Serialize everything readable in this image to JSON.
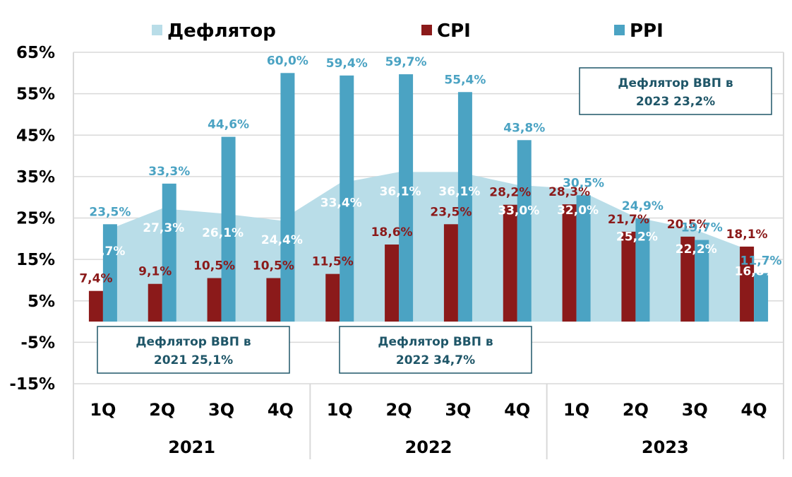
{
  "colors": {
    "deflator": "#b9dde8",
    "cpi": "#8b1a1a",
    "ppi": "#4ba3c3",
    "box_border": "#1f5668",
    "grid": "#d9d9d9"
  },
  "chart_data": {
    "type": "bar",
    "categories": [
      "1Q",
      "2Q",
      "3Q",
      "4Q",
      "1Q",
      "2Q",
      "3Q",
      "4Q",
      "1Q",
      "2Q",
      "3Q",
      "4Q"
    ],
    "years": [
      "2021",
      "2022",
      "2023"
    ],
    "ylim": [
      -15,
      65
    ],
    "yticks": [
      "65%",
      "55%",
      "45%",
      "35%",
      "25%",
      "15%",
      "5%",
      "-5%",
      "-15%"
    ],
    "legend": [
      {
        "key": "deflator",
        "name": "Дефлятор"
      },
      {
        "key": "cpi",
        "name": "CPI"
      },
      {
        "key": "ppi",
        "name": "PPI"
      }
    ],
    "series": [
      {
        "key": "deflator",
        "type": "area",
        "values": [
          21.7,
          27.3,
          26.1,
          24.4,
          33.4,
          36.1,
          36.1,
          33.0,
          32.0,
          25.2,
          22.2,
          16.8
        ],
        "labels": [
          "21,7%",
          "27,3%",
          "26,1%",
          "24,4%",
          "33,4%",
          "36,1%",
          "36,1%",
          "33,0%",
          "32,0%",
          "25,2%",
          "22,2%",
          "16,8%"
        ]
      },
      {
        "key": "cpi",
        "type": "bar",
        "values": [
          7.4,
          9.1,
          10.5,
          10.5,
          11.5,
          18.6,
          23.5,
          28.2,
          28.3,
          21.7,
          20.5,
          18.1
        ],
        "labels": [
          "7,4%",
          "9,1%",
          "10,5%",
          "10,5%",
          "11,5%",
          "18,6%",
          "23,5%",
          "28,2%",
          "28,3%",
          "21,7%",
          "20,5%",
          "18,1%"
        ]
      },
      {
        "key": "ppi",
        "type": "bar",
        "values": [
          23.5,
          33.3,
          44.6,
          60.0,
          59.4,
          59.7,
          55.4,
          43.8,
          30.5,
          24.9,
          19.7,
          11.7
        ],
        "labels": [
          "23,5%",
          "33,3%",
          "44,6%",
          "60,0%",
          "59,4%",
          "59,7%",
          "55,4%",
          "43,8%",
          "30,5%",
          "24,9%",
          "19,7%",
          "11,7%"
        ]
      }
    ],
    "annotations": [
      {
        "line1": "Дефлятор ВВП в",
        "line2": "2021 25,1%"
      },
      {
        "line1": "Дефлятор ВВП в",
        "line2": "2022 34,7%"
      },
      {
        "line1": "Дефлятор ВВП в",
        "line2": "2023 23,2%"
      }
    ]
  }
}
